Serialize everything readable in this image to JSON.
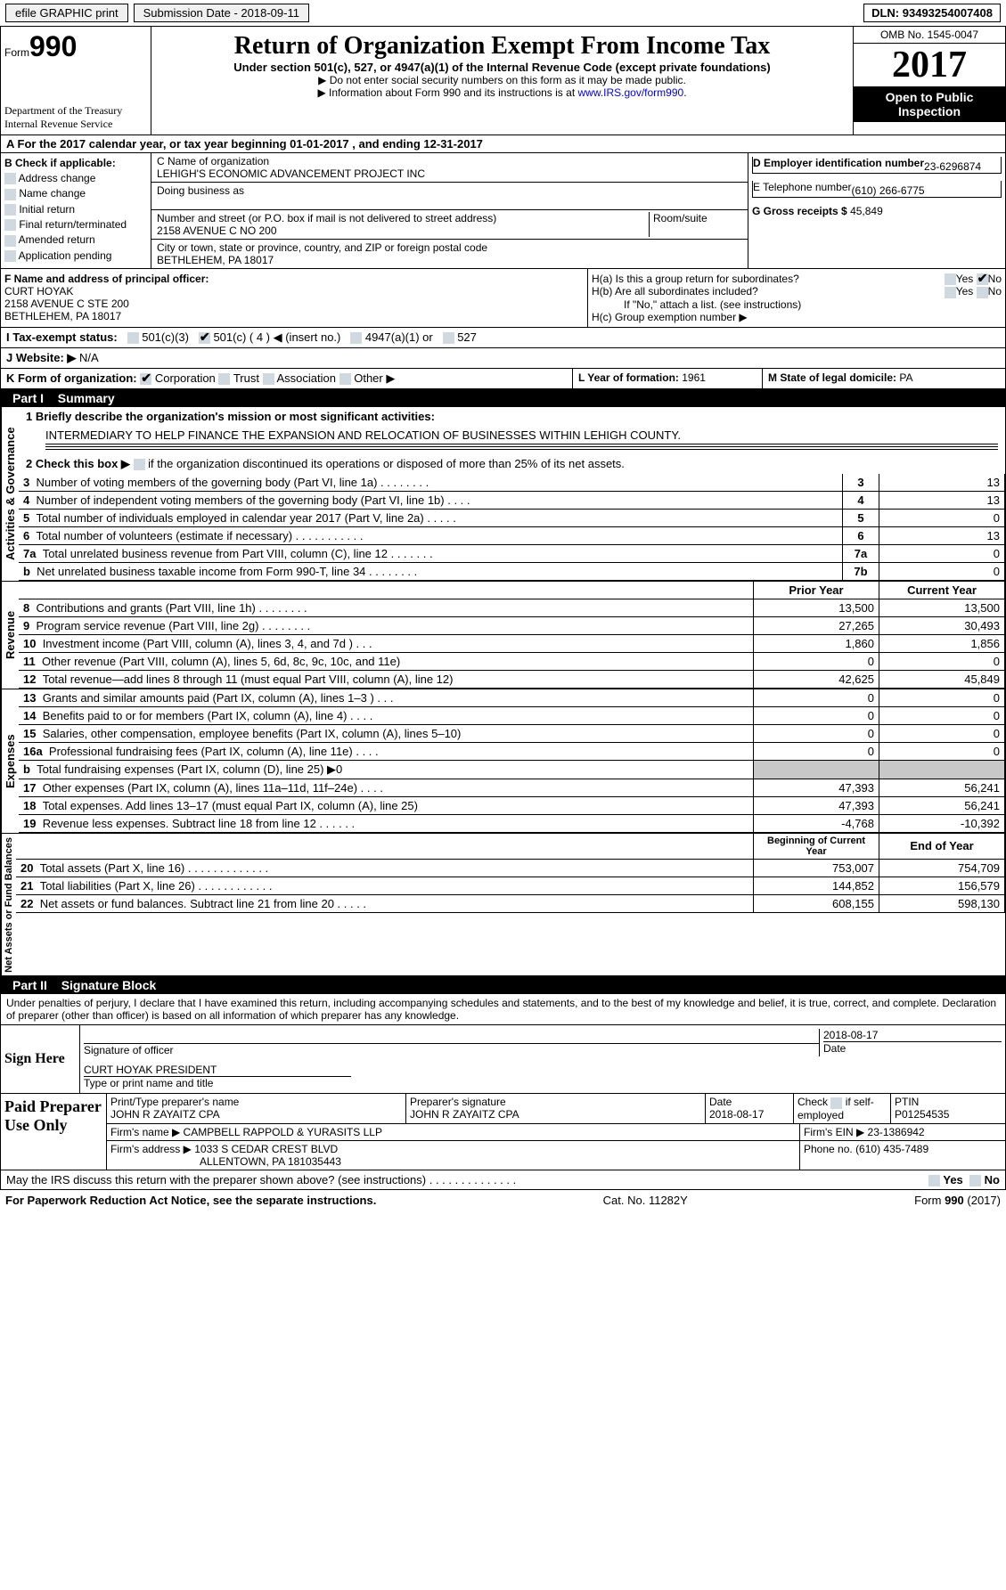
{
  "topbar": {
    "efile": "efile GRAPHIC print",
    "subdate_lbl": "Submission Date - ",
    "subdate": "2018-09-11",
    "dln_lbl": "DLN: ",
    "dln": "93493254007408"
  },
  "hdr": {
    "form_word": "Form",
    "form_num": "990",
    "dept": "Department of the Treasury\nInternal Revenue Service",
    "title": "Return of Organization Exempt From Income Tax",
    "sub": "Under section 501(c), 527, or 4947(a)(1) of the Internal Revenue Code (except private foundations)",
    "note1": "▶ Do not enter social security numbers on this form as it may be made public.",
    "note2": "▶ Information about Form 990 and its instructions is at ",
    "link": "www.IRS.gov/form990",
    "omb": "OMB No. 1545-0047",
    "year": "2017",
    "open": "Open to Public Inspection"
  },
  "A": {
    "text": "A  For the 2017 calendar year, or tax year beginning 01-01-2017   , and ending 12-31-2017"
  },
  "B": {
    "hdr": "B Check if applicable:",
    "items": [
      "Address change",
      "Name change",
      "Initial return",
      "Final return/terminated",
      "Amended return",
      "Application pending"
    ]
  },
  "C": {
    "name_lbl": "C Name of organization",
    "name": "LEHIGH'S ECONOMIC ADVANCEMENT PROJECT INC",
    "dba_lbl": "Doing business as",
    "dba": "",
    "street_lbl": "Number and street (or P.O. box if mail is not delivered to street address)",
    "street": "2158 AVENUE C NO 200",
    "room_lbl": "Room/suite",
    "room": "",
    "city_lbl": "City or town, state or province, country, and ZIP or foreign postal code",
    "city": "BETHLEHEM, PA  18017"
  },
  "D": {
    "ein_lbl": "D Employer identification number",
    "ein": "23-6296874",
    "tel_lbl": "E Telephone number",
    "tel": "(610) 266-6775",
    "gross_lbl": "G Gross receipts $ ",
    "gross": "45,849"
  },
  "F": {
    "lbl": "F  Name and address of principal officer:",
    "name": "CURT HOYAK",
    "addr1": "2158 AVENUE C STE 200",
    "addr2": "BETHLEHEM, PA  18017"
  },
  "H": {
    "a": "H(a)  Is this a group return for subordinates?",
    "b": "H(b)  Are all subordinates included?",
    "bnote": "If \"No,\" attach a list. (see instructions)",
    "c": "H(c)  Group exemption number ▶",
    "yes": "Yes",
    "no": "No"
  },
  "I": {
    "lbl": "I  Tax-exempt status:",
    "c3": "501(c)(3)",
    "c": "501(c) ( 4 ) ◀ (insert no.)",
    "a1": "4947(a)(1) or",
    "s527": "527"
  },
  "J": {
    "lbl": "J  Website: ▶",
    "val": "N/A"
  },
  "K": {
    "lbl": "K Form of organization:",
    "corp": "Corporation",
    "trust": "Trust",
    "assoc": "Association",
    "other": "Other ▶"
  },
  "L": {
    "lbl": "L Year of formation: ",
    "val": "1961"
  },
  "M": {
    "lbl": "M State of legal domicile: ",
    "val": "PA"
  },
  "part1": {
    "num": "Part I",
    "title": "Summary"
  },
  "sidelabels": {
    "ag": "Activities & Governance",
    "rev": "Revenue",
    "exp": "Expenses",
    "net": "Net Assets or Fund Balances"
  },
  "p1": {
    "l1": "1  Briefly describe the organization's mission or most significant activities:",
    "l1v": "INTERMEDIARY TO HELP FINANCE THE EXPANSION AND RELOCATION OF BUSINESSES WITHIN LEHIGH COUNTY.",
    "l2": "2  Check this box ▶ ",
    "l2b": " if the organization discontinued its operations or disposed of more than 25% of its net assets.",
    "rows": [
      {
        "n": "3",
        "t": "Number of voting members of the governing body (Part VI, line 1a)  .    .    .    .    .    .    .    .",
        "k": "3",
        "v": "13"
      },
      {
        "n": "4",
        "t": "Number of independent voting members of the governing body (Part VI, line 1b)  .    .    .    .",
        "k": "4",
        "v": "13"
      },
      {
        "n": "5",
        "t": "Total number of individuals employed in calendar year 2017 (Part V, line 2a)  .    .    .    .    .",
        "k": "5",
        "v": "0"
      },
      {
        "n": "6",
        "t": "Total number of volunteers (estimate if necessary)  .    .    .    .    .    .    .    .    .    .    .",
        "k": "6",
        "v": "13"
      },
      {
        "n": "7a",
        "t": "Total unrelated business revenue from Part VIII, column (C), line 12  .    .    .    .    .    .    .",
        "k": "7a",
        "v": "0"
      },
      {
        "n": "b",
        "t": "Net unrelated business taxable income from Form 990-T, line 34  .    .    .    .    .    .    .    .",
        "k": "7b",
        "v": "0"
      }
    ]
  },
  "rev": {
    "hdr": {
      "py": "Prior Year",
      "cy": "Current Year"
    },
    "rows": [
      {
        "n": "8",
        "t": "Contributions and grants (Part VIII, line 1h)  .    .    .    .    .    .    .    .",
        "py": "13,500",
        "cy": "13,500"
      },
      {
        "n": "9",
        "t": "Program service revenue (Part VIII, line 2g)  .    .    .    .    .    .    .    .",
        "py": "27,265",
        "cy": "30,493"
      },
      {
        "n": "10",
        "t": "Investment income (Part VIII, column (A), lines 3, 4, and 7d )  .    .    .",
        "py": "1,860",
        "cy": "1,856"
      },
      {
        "n": "11",
        "t": "Other revenue (Part VIII, column (A), lines 5, 6d, 8c, 9c, 10c, and 11e)",
        "py": "0",
        "cy": "0"
      },
      {
        "n": "12",
        "t": "Total revenue—add lines 8 through 11 (must equal Part VIII, column (A), line 12)",
        "py": "42,625",
        "cy": "45,849"
      }
    ]
  },
  "exp": {
    "rows": [
      {
        "n": "13",
        "t": "Grants and similar amounts paid (Part IX, column (A), lines 1–3 )  .    .    .",
        "py": "0",
        "cy": "0"
      },
      {
        "n": "14",
        "t": "Benefits paid to or for members (Part IX, column (A), line 4)  .    .    .    .",
        "py": "0",
        "cy": "0"
      },
      {
        "n": "15",
        "t": "Salaries, other compensation, employee benefits (Part IX, column (A), lines 5–10)",
        "py": "0",
        "cy": "0"
      },
      {
        "n": "16a",
        "t": "Professional fundraising fees (Part IX, column (A), line 11e)  .    .    .    .",
        "py": "0",
        "cy": "0"
      },
      {
        "n": "b",
        "t": "Total fundraising expenses (Part IX, column (D), line 25) ▶0",
        "py": "",
        "cy": "",
        "shaded": true
      },
      {
        "n": "17",
        "t": "Other expenses (Part IX, column (A), lines 11a–11d, 11f–24e)  .    .    .    .",
        "py": "47,393",
        "cy": "56,241"
      },
      {
        "n": "18",
        "t": "Total expenses. Add lines 13–17 (must equal Part IX, column (A), line 25)",
        "py": "47,393",
        "cy": "56,241"
      },
      {
        "n": "19",
        "t": "Revenue less expenses. Subtract line 18 from line 12  .    .    .    .    .    .",
        "py": "-4,768",
        "cy": "-10,392"
      }
    ]
  },
  "net": {
    "hdr": {
      "by": "Beginning of Current Year",
      "ey": "End of Year"
    },
    "rows": [
      {
        "n": "20",
        "t": "Total assets (Part X, line 16)  .    .    .    .    .    .    .    .    .    .    .    .    .",
        "py": "753,007",
        "cy": "754,709"
      },
      {
        "n": "21",
        "t": "Total liabilities (Part X, line 26)  .    .    .    .    .    .    .    .    .    .    .    .",
        "py": "144,852",
        "cy": "156,579"
      },
      {
        "n": "22",
        "t": "Net assets or fund balances. Subtract line 21 from line 20 .    .    .    .    .",
        "py": "608,155",
        "cy": "598,130"
      }
    ]
  },
  "part2": {
    "num": "Part II",
    "title": "Signature Block"
  },
  "sig": {
    "decl": "Under penalties of perjury, I declare that I have examined this return, including accompanying schedules and statements, and to the best of my knowledge and belief, it is true, correct, and complete. Declaration of preparer (other than officer) is based on all information of which preparer has any knowledge.",
    "signhere": "Sign Here",
    "sig_of_officer": "Signature of officer",
    "date": "2018-08-17",
    "date_lbl": "Date",
    "officer_name": "CURT HOYAK PRESIDENT",
    "officer_lbl": "Type or print name and title",
    "paid": "Paid Preparer Use Only",
    "prep_name_lbl": "Print/Type preparer's name",
    "prep_name": "JOHN R ZAYAITZ CPA",
    "prep_sig_lbl": "Preparer's signature",
    "prep_sig": "JOHN R ZAYAITZ CPA",
    "prep_date_lbl": "Date",
    "prep_date": "2018-08-17",
    "self_lbl": "Check",
    "self_lbl2": "if self-employed",
    "ptin_lbl": "PTIN",
    "ptin": "P01254535",
    "firm_name_lbl": "Firm's name     ▶",
    "firm_name": "CAMPBELL RAPPOLD & YURASITS LLP",
    "firm_ein_lbl": "Firm's EIN ▶",
    "firm_ein": "23-1386942",
    "firm_addr_lbl": "Firm's address ▶",
    "firm_addr1": "1033 S CEDAR CREST BLVD",
    "firm_addr2": "ALLENTOWN, PA  181035443",
    "phone_lbl": "Phone no. ",
    "phone": "(610) 435-7489",
    "discuss": "May the IRS discuss this return with the preparer shown above? (see instructions)  .    .    .    .    .    .    .    .    .    .    .    .    .    .",
    "yes": "Yes",
    "no": "No"
  },
  "footer": {
    "pra": "For Paperwork Reduction Act Notice, see the separate instructions.",
    "cat": "Cat. No. 11282Y",
    "form": "Form 990 (2017)"
  }
}
